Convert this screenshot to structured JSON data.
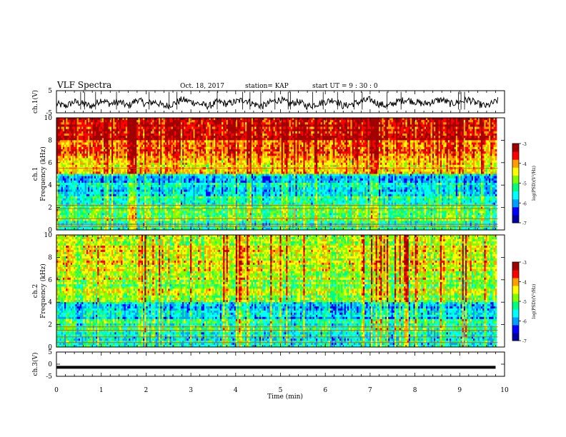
{
  "header": {
    "title": "VLF Spectra",
    "date": "Oct. 18, 2017",
    "station": "station= KAP",
    "start": "start  UT  =   9  : 30 : 0"
  },
  "colorbar": {
    "label": "log(PSD)(V²/Hz)",
    "ticks": [
      -3,
      -4,
      -5,
      -6,
      -7
    ],
    "colormap": [
      "#0000a0",
      "#0000ff",
      "#00a0ff",
      "#00ffff",
      "#00ff80",
      "#80ff00",
      "#ffff00",
      "#ffa000",
      "#ff0000",
      "#a00000"
    ]
  },
  "chart_data": [
    {
      "type": "line",
      "name": "ch1-waveform",
      "ylabel": "ch.1(V)",
      "ylim": [
        -5,
        5
      ],
      "yticks": [
        5,
        -5
      ],
      "xlim": [
        0,
        10
      ],
      "series": [
        {
          "x": [
            0,
            0.2,
            0.4,
            0.6,
            0.8,
            1.0,
            1.2,
            1.4,
            1.6,
            1.8,
            2.0,
            2.2,
            2.4,
            2.6,
            2.8,
            3.0,
            3.2,
            3.4,
            3.6,
            3.8,
            4.0,
            4.2,
            4.4,
            4.6,
            4.8,
            5.0,
            5.2,
            5.4,
            5.6,
            5.8,
            6.0,
            6.2,
            6.4,
            6.6,
            6.8,
            7.0,
            7.2,
            7.4,
            7.6,
            7.8,
            8.0,
            8.2,
            8.4,
            8.6,
            8.8,
            9.0,
            9.2,
            9.4,
            9.6,
            9.8
          ],
          "values": [
            -1,
            -2,
            0,
            -1,
            -2,
            1,
            -1,
            0,
            -2,
            1,
            -1,
            0,
            -2,
            -1,
            1,
            0,
            -1,
            -2,
            0,
            -1,
            0,
            1,
            -1,
            -2,
            0,
            1,
            -1,
            0,
            -2,
            -1,
            0,
            1,
            -2,
            -1,
            0,
            1,
            -1,
            -2,
            0,
            1,
            0,
            -1,
            0,
            1,
            -1,
            0,
            1,
            -1,
            -2,
            0
          ]
        }
      ]
    },
    {
      "type": "heatmap",
      "name": "ch1-spectrogram",
      "ylabel": "ch.1\nFrequency (kHz)",
      "ylim": [
        0,
        10
      ],
      "yticks": [
        0,
        2,
        4,
        6,
        8,
        10
      ],
      "xlim": [
        0,
        10
      ],
      "zlim": [
        -7,
        -3
      ],
      "bands": [
        {
          "f": [
            8,
            10
          ],
          "level": -3.5
        },
        {
          "f": [
            6,
            8
          ],
          "level": -3.9
        },
        {
          "f": [
            5,
            6
          ],
          "level": -4.4
        },
        {
          "f": [
            3,
            5
          ],
          "level": -5.7
        },
        {
          "f": [
            1.5,
            3
          ],
          "level": -5.2
        },
        {
          "f": [
            0.8,
            1.5
          ],
          "level": -5.0
        },
        {
          "f": [
            0,
            0.8
          ],
          "level": -5.5
        }
      ],
      "lines_khz": [
        0.3,
        0.5,
        1.0,
        1.9,
        2.2,
        5.5
      ]
    },
    {
      "type": "heatmap",
      "name": "ch2-spectrogram",
      "ylabel": "ch.2\nFrequency (kHz)",
      "ylim": [
        0,
        10
      ],
      "yticks": [
        0,
        2,
        4,
        6,
        8,
        10
      ],
      "xlim": [
        0,
        10
      ],
      "zlim": [
        -7,
        -3
      ],
      "bands": [
        {
          "f": [
            6,
            10
          ],
          "level": -4.5
        },
        {
          "f": [
            4,
            6
          ],
          "level": -4.8
        },
        {
          "f": [
            2.5,
            4
          ],
          "level": -5.8
        },
        {
          "f": [
            1.5,
            2.5
          ],
          "level": -5.3
        },
        {
          "f": [
            0,
            1.5
          ],
          "level": -5.6
        }
      ],
      "lines_khz": [
        0.4,
        0.9,
        1.5,
        1.8
      ]
    },
    {
      "type": "line",
      "name": "ch3-waveform",
      "ylabel": "ch.3(V)",
      "ylim": [
        -5,
        5
      ],
      "yticks": [
        5,
        0,
        -5
      ],
      "xlim": [
        0,
        10
      ],
      "series": [
        {
          "x": [
            0,
            9.8
          ],
          "values": [
            -1.3,
            -1.3
          ]
        }
      ]
    }
  ],
  "xaxis": {
    "label": "Time (min)",
    "ticks": [
      0,
      1,
      2,
      3,
      4,
      5,
      6,
      7,
      8,
      9,
      10
    ]
  }
}
